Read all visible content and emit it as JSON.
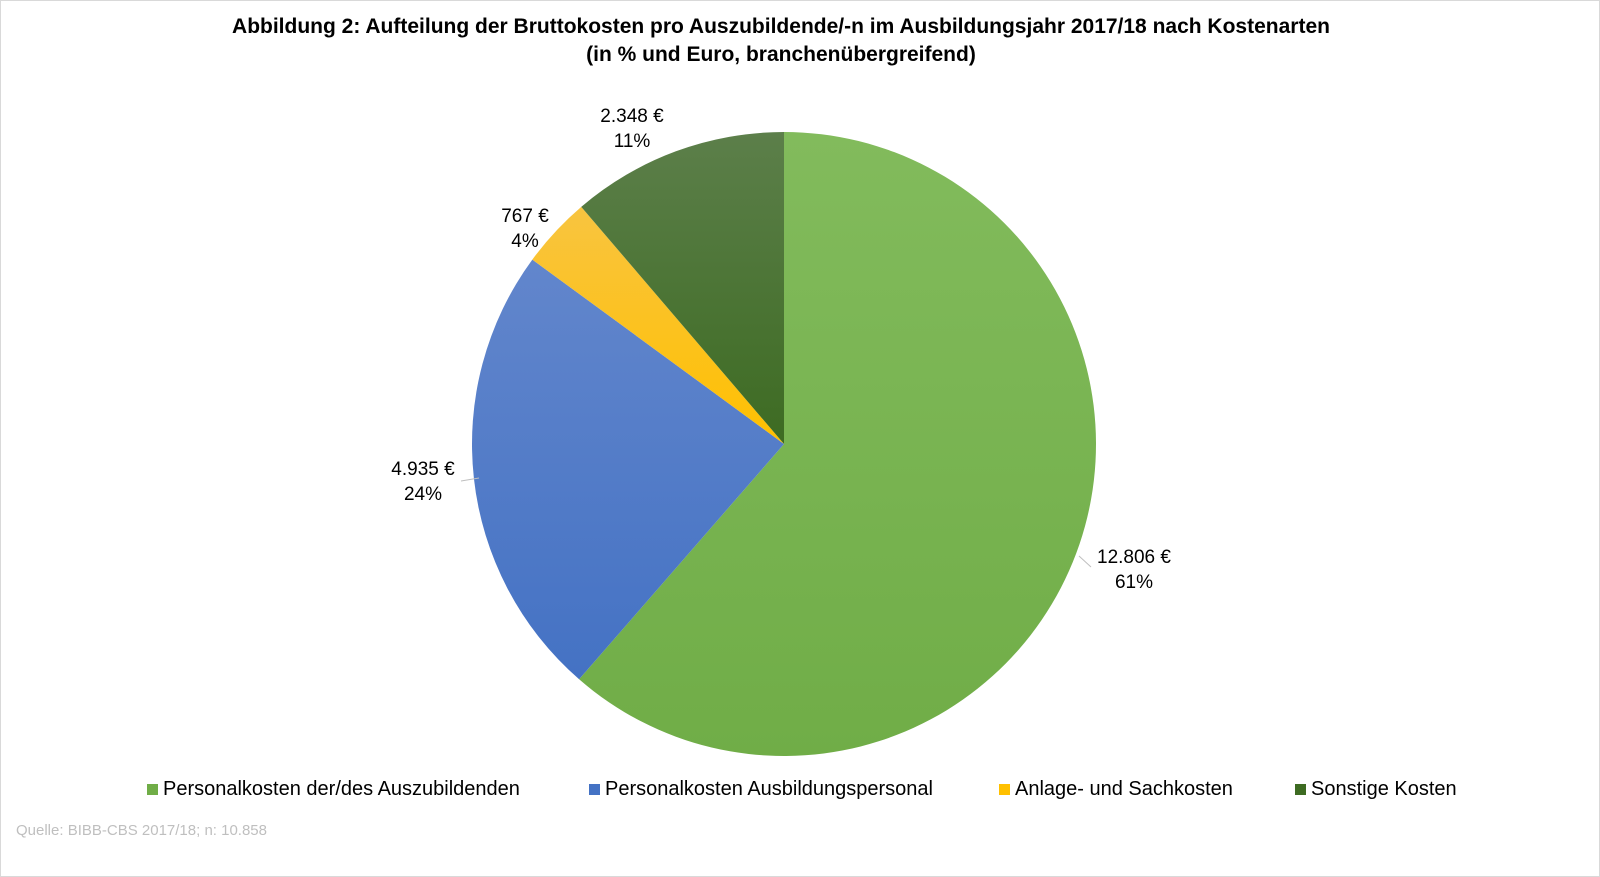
{
  "chart_data": {
    "type": "pie",
    "title": "Abbildung 2: Aufteilung der Bruttokosten pro Auszubildende/-n im Ausbildungsjahr 2017/18 nach Kostenarten",
    "subtitle": "(in %  und Euro, branchenübergreifend)",
    "start_angle_deg": 0,
    "direction": "clockwise",
    "slices": [
      {
        "name": "Personalkosten der/des Auszubildenden",
        "value": 12806,
        "value_label": "12.806 €",
        "percent_label": "61%",
        "color": "#70ad47",
        "color_top": "#82bb5c"
      },
      {
        "name": "Personalkosten Ausbildungspersonal",
        "value": 4935,
        "value_label": "4.935 €",
        "percent_label": "24%",
        "color": "#4472c4",
        "color_top": "#6286cc"
      },
      {
        "name": "Anlage- und Sachkosten",
        "value": 767,
        "value_label": "767 €",
        "percent_label": "4%",
        "color": "#ffc000",
        "color_top": "#f8c440"
      },
      {
        "name": "Sonstige Kosten",
        "value": 2348,
        "value_label": "2.348 €",
        "percent_label": "11%",
        "color": "#3d6b22",
        "color_top": "#5c7f4a"
      }
    ],
    "legend_position": "bottom"
  },
  "source": "Quelle:  BIBB-CBS 2017/18; n: 10.858"
}
